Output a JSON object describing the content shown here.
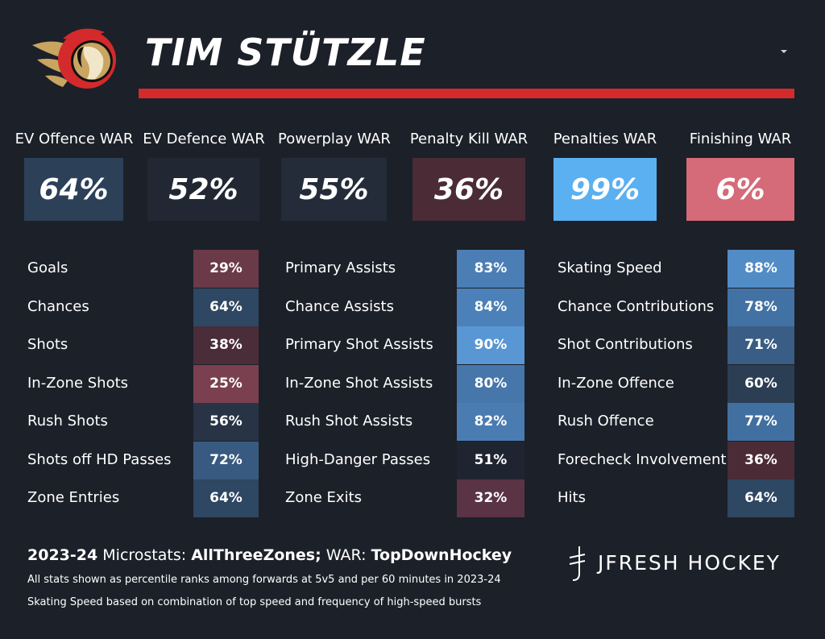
{
  "header": {
    "player_name": "TIM STÜTZLE",
    "team_logo": "ottawa-senators-logo",
    "menu_icon": "chevron-down-icon",
    "accent_color": "#d42a2b"
  },
  "war": [
    {
      "label": "EV Offence WAR",
      "value": "64%",
      "color": "#2c4058"
    },
    {
      "label": "EV Defence WAR",
      "value": "52%",
      "color": "#222833"
    },
    {
      "label": "Powerplay WAR",
      "value": "55%",
      "color": "#232c38"
    },
    {
      "label": "Penalty Kill WAR",
      "value": "36%",
      "color": "#4a2b36"
    },
    {
      "label": "Penalties WAR",
      "value": "99%",
      "color": "#5ab0f0"
    },
    {
      "label": "Finishing WAR",
      "value": "6%",
      "color": "#d56a78"
    }
  ],
  "stats": {
    "col1": [
      {
        "label": "Goals",
        "value": "29%",
        "color": "#6a3a48"
      },
      {
        "label": "Chances",
        "value": "64%",
        "color": "#2e4762"
      },
      {
        "label": "Shots",
        "value": "38%",
        "color": "#4a2d38"
      },
      {
        "label": "In-Zone Shots",
        "value": "25%",
        "color": "#7a4050"
      },
      {
        "label": "Rush Shots",
        "value": "56%",
        "color": "#283446"
      },
      {
        "label": "Shots off HD Passes",
        "value": "72%",
        "color": "#385a80"
      },
      {
        "label": "Zone Entries",
        "value": "64%",
        "color": "#2e4762"
      }
    ],
    "col2": [
      {
        "label": "Primary Assists",
        "value": "83%",
        "color": "#4a7eb4"
      },
      {
        "label": "Chance Assists",
        "value": "84%",
        "color": "#4b81b8"
      },
      {
        "label": "Primary Shot Assists",
        "value": "90%",
        "color": "#5897d4"
      },
      {
        "label": "In-Zone Shot Assists",
        "value": "80%",
        "color": "#4676aa"
      },
      {
        "label": "Rush Shot Assists",
        "value": "82%",
        "color": "#4a7cb2"
      },
      {
        "label": "High-Danger Passes",
        "value": "51%",
        "color": "#1f2530"
      },
      {
        "label": "Zone Exits",
        "value": "32%",
        "color": "#5a3344"
      }
    ],
    "col3": [
      {
        "label": "Skating Speed",
        "value": "88%",
        "color": "#528cc6"
      },
      {
        "label": "Chance Contributions",
        "value": "78%",
        "color": "#4272a4"
      },
      {
        "label": "Shot Contributions",
        "value": "71%",
        "color": "#395d84"
      },
      {
        "label": "In-Zone Offence",
        "value": "60%",
        "color": "#2b3e54"
      },
      {
        "label": "Rush Offence",
        "value": "77%",
        "color": "#4170a0"
      },
      {
        "label": "Forecheck Involvement",
        "value": "36%",
        "color": "#4a2b36"
      },
      {
        "label": "Hits",
        "value": "64%",
        "color": "#2e4762"
      }
    ]
  },
  "footer": {
    "season": "2023-24",
    "microstats_label": "Microstats:",
    "microstats_source": "AllThreeZones;",
    "war_label": "WAR:",
    "war_source": "TopDownHockey",
    "note1": "All stats shown as percentile ranks among forwards at 5v5 and per 60 minutes in 2023-24",
    "note2": "Skating Speed based on combination of top speed and frequency of high-speed bursts",
    "brand": "JFRESH HOCKEY",
    "brand_icon": "jfresh-logo-icon"
  }
}
